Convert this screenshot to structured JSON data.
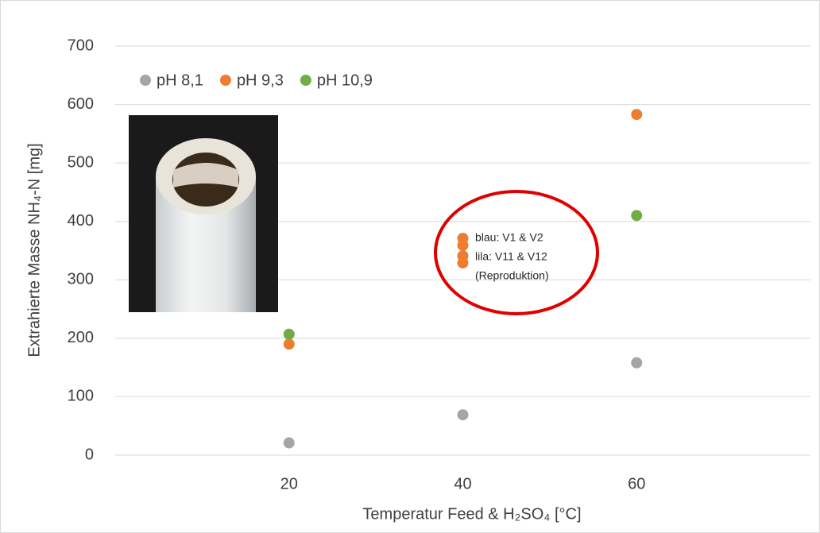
{
  "chart_data": {
    "type": "scatter",
    "x_label": "Temperatur Feed & H₂SO₄ [°C]",
    "y_label": "Extrahierte Masse NH₄-N [mg]",
    "xlim": [
      0,
      80
    ],
    "xticks": [
      20,
      40,
      60
    ],
    "ylim": [
      0,
      700
    ],
    "yticks": [
      0,
      100,
      200,
      300,
      400,
      500,
      600,
      700
    ],
    "grid": true,
    "legend": "top-left",
    "series": [
      {
        "name": "pH 8,1",
        "color": "#a5a5a5",
        "x": [
          20,
          40,
          60
        ],
        "values": [
          21,
          69,
          158
        ]
      },
      {
        "name": "pH 9,3",
        "color": "#ed7d31",
        "x": [
          20,
          40,
          40,
          40,
          40,
          60
        ],
        "values": [
          190,
          371,
          359,
          341,
          329,
          583
        ]
      },
      {
        "name": "pH 10,9",
        "color": "#70ad47",
        "x": [
          20,
          60
        ],
        "values": [
          207,
          410
        ]
      }
    ],
    "annotations": [
      "blau: V1 & V2",
      "lila: V11 & V12",
      "(Reproduktion)"
    ]
  }
}
